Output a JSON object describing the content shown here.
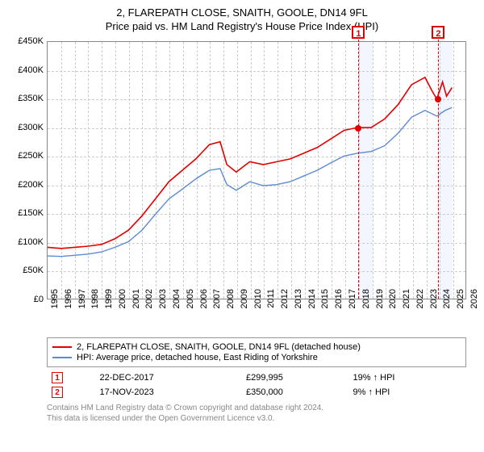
{
  "header": {
    "title": "2, FLAREPATH CLOSE, SNAITH, GOOLE, DN14 9FL",
    "subtitle": "Price paid vs. HM Land Registry's House Price Index (HPI)"
  },
  "chart": {
    "type": "line",
    "background_color": "#ffffff",
    "grid_color": "#cccccc",
    "border_color": "#888888",
    "xlim": [
      1995,
      2026
    ],
    "ylim": [
      0,
      450000
    ],
    "ytick_step": 50000,
    "yticks": [
      "£0",
      "£50K",
      "£100K",
      "£150K",
      "£200K",
      "£250K",
      "£300K",
      "£350K",
      "£400K",
      "£450K"
    ],
    "xticks": [
      "1995",
      "1996",
      "1997",
      "1998",
      "1999",
      "2000",
      "2001",
      "2002",
      "2003",
      "2004",
      "2005",
      "2006",
      "2007",
      "2008",
      "2009",
      "2010",
      "2011",
      "2012",
      "2013",
      "2014",
      "2015",
      "2016",
      "2017",
      "2018",
      "2019",
      "2020",
      "2021",
      "2022",
      "2023",
      "2024",
      "2025",
      "2026"
    ],
    "tick_fontsize": 11,
    "shade_bands": [
      {
        "from_year": 2017.98,
        "to_year": 2019.0,
        "color": "rgba(100,140,240,0.08)"
      },
      {
        "from_year": 2023.88,
        "to_year": 2024.9,
        "color": "rgba(100,140,240,0.08)"
      }
    ],
    "series": [
      {
        "name": "property",
        "label": "2, FLAREPATH CLOSE, SNAITH, GOOLE, DN14 9FL (detached house)",
        "color": "#e20000",
        "line_width": 1.6,
        "data": [
          [
            1995,
            90000
          ],
          [
            1996,
            88000
          ],
          [
            1997,
            90000
          ],
          [
            1998,
            92000
          ],
          [
            1999,
            95000
          ],
          [
            2000,
            105000
          ],
          [
            2001,
            120000
          ],
          [
            2002,
            145000
          ],
          [
            2003,
            175000
          ],
          [
            2004,
            205000
          ],
          [
            2005,
            225000
          ],
          [
            2006,
            245000
          ],
          [
            2007,
            270000
          ],
          [
            2007.8,
            275000
          ],
          [
            2008.3,
            235000
          ],
          [
            2009,
            222000
          ],
          [
            2010,
            240000
          ],
          [
            2011,
            235000
          ],
          [
            2012,
            240000
          ],
          [
            2013,
            245000
          ],
          [
            2014,
            255000
          ],
          [
            2015,
            265000
          ],
          [
            2016,
            280000
          ],
          [
            2017,
            295000
          ],
          [
            2018,
            300000
          ],
          [
            2019,
            300000
          ],
          [
            2020,
            315000
          ],
          [
            2021,
            340000
          ],
          [
            2022,
            375000
          ],
          [
            2023,
            388000
          ],
          [
            2023.5,
            365000
          ],
          [
            2023.88,
            350000
          ],
          [
            2024.3,
            380000
          ],
          [
            2024.6,
            355000
          ],
          [
            2025,
            370000
          ]
        ]
      },
      {
        "name": "hpi",
        "label": "HPI: Average price, detached house, East Riding of Yorkshire",
        "color": "#5b8bd4",
        "line_width": 1.4,
        "data": [
          [
            1995,
            75000
          ],
          [
            1996,
            74000
          ],
          [
            1997,
            76000
          ],
          [
            1998,
            78000
          ],
          [
            1999,
            82000
          ],
          [
            2000,
            90000
          ],
          [
            2001,
            100000
          ],
          [
            2002,
            120000
          ],
          [
            2003,
            148000
          ],
          [
            2004,
            175000
          ],
          [
            2005,
            192000
          ],
          [
            2006,
            210000
          ],
          [
            2007,
            225000
          ],
          [
            2007.8,
            228000
          ],
          [
            2008.3,
            200000
          ],
          [
            2009,
            190000
          ],
          [
            2010,
            205000
          ],
          [
            2011,
            198000
          ],
          [
            2012,
            200000
          ],
          [
            2013,
            205000
          ],
          [
            2014,
            215000
          ],
          [
            2015,
            225000
          ],
          [
            2016,
            238000
          ],
          [
            2017,
            250000
          ],
          [
            2018,
            255000
          ],
          [
            2019,
            258000
          ],
          [
            2020,
            268000
          ],
          [
            2021,
            290000
          ],
          [
            2022,
            318000
          ],
          [
            2023,
            330000
          ],
          [
            2023.88,
            320000
          ],
          [
            2024.5,
            330000
          ],
          [
            2025,
            335000
          ]
        ]
      }
    ],
    "markers": [
      {
        "id": "1",
        "year": 2017.98,
        "price": 299995
      },
      {
        "id": "2",
        "year": 2023.88,
        "price": 350000
      }
    ]
  },
  "legend": {
    "rows": [
      {
        "color": "#e20000",
        "text": "2, FLAREPATH CLOSE, SNAITH, GOOLE, DN14 9FL (detached house)"
      },
      {
        "color": "#5b8bd4",
        "text": "HPI: Average price, detached house, East Riding of Yorkshire"
      }
    ]
  },
  "marker_table": {
    "rows": [
      {
        "badge": "1",
        "date": "22-DEC-2017",
        "price": "£299,995",
        "delta": "19% ↑ HPI"
      },
      {
        "badge": "2",
        "date": "17-NOV-2023",
        "price": "£350,000",
        "delta": "9% ↑ HPI"
      }
    ]
  },
  "footnote": {
    "line1": "Contains HM Land Registry data © Crown copyright and database right 2024.",
    "line2": "This data is licensed under the Open Government Licence v3.0."
  }
}
